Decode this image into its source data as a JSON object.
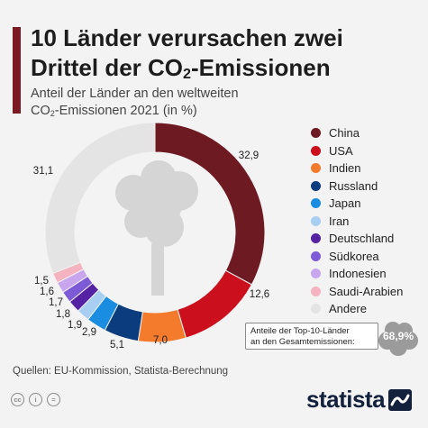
{
  "title_line1": "10 Länder verursachen zwei",
  "title_line2_pre": "Drittel der CO",
  "title_line2_sub": "2",
  "title_line2_post": "-Emissionen",
  "subtitle_line1": "Anteil der Länder an den weltweiten",
  "subtitle_line2_pre": "CO",
  "subtitle_line2_sub": "2",
  "subtitle_line2_post": "-Emissionen 2021 (in %)",
  "chart_data": {
    "type": "pie",
    "categories": [
      "China",
      "USA",
      "Indien",
      "Russland",
      "Japan",
      "Iran",
      "Deutschland",
      "Südkorea",
      "Indonesien",
      "Saudi-Arabien",
      "Andere"
    ],
    "values": [
      32.9,
      12.6,
      7.0,
      5.1,
      2.9,
      1.9,
      1.8,
      1.7,
      1.6,
      1.5,
      31.1
    ],
    "labels": [
      "32,9",
      "12,6",
      "7,0",
      "5,1",
      "2,9",
      "1,9",
      "1,8",
      "1,7",
      "1,6",
      "1,5",
      "31,1"
    ],
    "colors": [
      "#6e1a23",
      "#cc0f1c",
      "#f47a2c",
      "#0b3c7d",
      "#1a8de0",
      "#a8cef2",
      "#5522a3",
      "#7e5bd6",
      "#c7a6ee",
      "#f5b3c0",
      "#e4e4e4"
    ],
    "legend_position": "right"
  },
  "callout_line1": "Anteile der Top-10-Länder",
  "callout_line2": "an den Gesamtemissionen:",
  "callout_value": "68,9%",
  "source": "Quellen: EU-Kommission, Statista-Berechnung",
  "brand": "statista",
  "cc_icons": [
    "cc",
    "i",
    "="
  ]
}
